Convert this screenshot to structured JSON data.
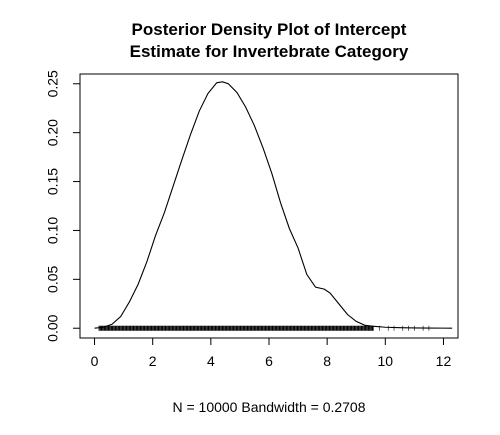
{
  "chart_data": {
    "type": "line",
    "title_lines": [
      "Posterior Density Plot of Intercept",
      "Estimate for Invertebrate Category"
    ],
    "xlabel": "N = 10000   Bandwidth = 0.2708",
    "ylabel": "",
    "xlim": [
      -0.5,
      12.5
    ],
    "ylim": [
      -0.01,
      0.26
    ],
    "x_ticks": [
      "0",
      "2",
      "4",
      "6",
      "8",
      "10",
      "12"
    ],
    "y_ticks": [
      "0.00",
      "0.05",
      "0.10",
      "0.15",
      "0.20",
      "0.25"
    ],
    "grid": false,
    "legend": "none",
    "rug": true,
    "series": [
      {
        "x": [
          0.0,
          0.3,
          0.6,
          0.9,
          1.2,
          1.5,
          1.8,
          2.1,
          2.4,
          2.7,
          3.0,
          3.3,
          3.6,
          3.9,
          4.2,
          4.4,
          4.6,
          4.9,
          5.2,
          5.5,
          5.8,
          6.1,
          6.4,
          6.7,
          7.0,
          7.3,
          7.6,
          7.9,
          8.1,
          8.4,
          8.7,
          9.0,
          9.3,
          9.6,
          10.0,
          10.5,
          11.0,
          11.5,
          12.0,
          12.3
        ],
        "y": [
          0.0,
          0.001,
          0.004,
          0.012,
          0.027,
          0.045,
          0.068,
          0.095,
          0.118,
          0.145,
          0.172,
          0.198,
          0.222,
          0.24,
          0.251,
          0.252,
          0.25,
          0.241,
          0.226,
          0.207,
          0.184,
          0.158,
          0.128,
          0.102,
          0.082,
          0.055,
          0.042,
          0.04,
          0.036,
          0.025,
          0.014,
          0.007,
          0.003,
          0.002,
          0.001,
          0.0005,
          0.0003,
          0.0002,
          0.0001,
          0.0
        ]
      }
    ]
  }
}
